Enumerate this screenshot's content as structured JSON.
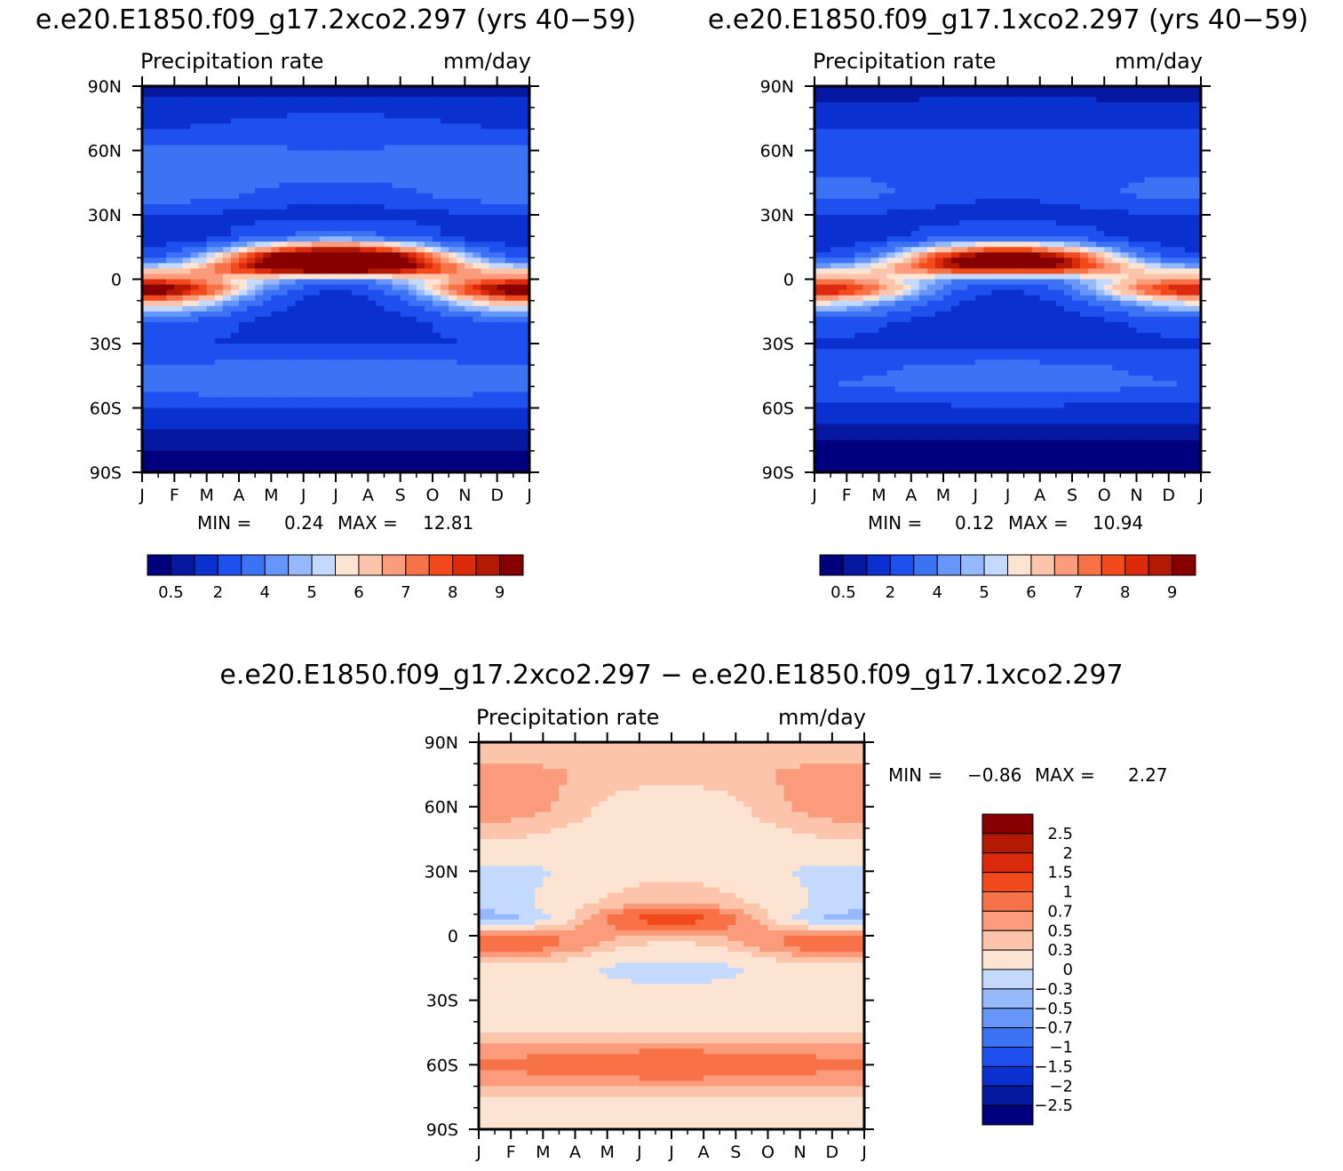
{
  "panels": [
    {
      "title": "e.e20.E1850.f09_g17.2xco2.297 (yrs 40−59)",
      "left_label": "Precipitation rate",
      "right_label": "mm/day",
      "min_label": "MIN =",
      "min_value": "0.24",
      "max_label": "MAX =",
      "max_value": "12.81"
    },
    {
      "title": "e.e20.E1850.f09_g17.1xco2.297 (yrs 40−59)",
      "left_label": "Precipitation rate",
      "right_label": "mm/day",
      "min_label": "MIN =",
      "min_value": "0.12",
      "max_label": "MAX =",
      "max_value": "10.94"
    },
    {
      "title": "e.e20.E1850.f09_g17.2xco2.297 − e.e20.E1850.f09_g17.1xco2.297",
      "left_label": "Precipitation rate",
      "right_label": "mm/day",
      "min_label": "MIN =",
      "min_value": "−0.86",
      "max_label": "MAX =",
      "max_value": "2.27"
    }
  ],
  "chart_data": [
    {
      "type": "heatmap",
      "title": "e.e20.E1850.f09_g17.2xco2.297 (yrs 40−59)",
      "variable": "Precipitation rate",
      "units": "mm/day",
      "x_ticks": [
        "J",
        "F",
        "M",
        "A",
        "M",
        "J",
        "J",
        "A",
        "S",
        "O",
        "N",
        "D",
        "J"
      ],
      "y_ticks": [
        "90N",
        "60N",
        "30N",
        "0",
        "30S",
        "60S",
        "90S"
      ],
      "ylim": [
        -90,
        90
      ],
      "min": 0.24,
      "max": 12.81,
      "colorbar_labels": [
        "0.5",
        "2",
        "4",
        "5",
        "6",
        "7",
        "8",
        "9"
      ],
      "colorbar_colors": [
        "#00007f",
        "#0618a0",
        "#0a30d0",
        "#1e50f0",
        "#3c73f5",
        "#6796fa",
        "#96b9fd",
        "#c4d9ff",
        "#fde4d2",
        "#fcc4ab",
        "#fa9c7c",
        "#f87247",
        "#f34a1d",
        "#dc2a0d",
        "#b31800",
        "#860000"
      ],
      "bands": [
        {
          "lat": 90,
          "jan": 0.5,
          "jul": 0.5
        },
        {
          "lat": 80,
          "jan": 1.5,
          "jul": 1.8
        },
        {
          "lat": 70,
          "jan": 2.0,
          "jul": 2.5
        },
        {
          "lat": 60,
          "jan": 3.5,
          "jul": 3.0
        },
        {
          "lat": 50,
          "jan": 3.0,
          "jul": 3.5
        },
        {
          "lat": 40,
          "jan": 3.8,
          "jul": 2.5
        },
        {
          "lat": 30,
          "jan": 2.0,
          "jul": 1.5
        },
        {
          "lat": 20,
          "jan": 1.0,
          "jul": 3.5
        },
        {
          "lat": 10,
          "jan": 3.0,
          "jul": 12.0
        },
        {
          "lat": 5,
          "jan": 5.5,
          "jul": 11.0
        },
        {
          "lat": 0,
          "jan": 7.5,
          "jul": 4.0
        },
        {
          "lat": -5,
          "jan": 10.0,
          "jul": 2.0
        },
        {
          "lat": -10,
          "jan": 7.0,
          "jul": 1.5
        },
        {
          "lat": -20,
          "jan": 3.0,
          "jul": 1.0
        },
        {
          "lat": -30,
          "jan": 2.0,
          "jul": 1.8
        },
        {
          "lat": -40,
          "jan": 3.0,
          "jul": 3.5
        },
        {
          "lat": -50,
          "jan": 3.5,
          "jul": 4.0
        },
        {
          "lat": -60,
          "jan": 2.0,
          "jul": 2.0
        },
        {
          "lat": -70,
          "jan": 1.0,
          "jul": 1.0
        },
        {
          "lat": -80,
          "jan": 0.5,
          "jul": 0.5
        },
        {
          "lat": -90,
          "jan": 0.3,
          "jul": 0.3
        }
      ]
    },
    {
      "type": "heatmap",
      "title": "e.e20.E1850.f09_g17.1xco2.297 (yrs 40−59)",
      "variable": "Precipitation rate",
      "units": "mm/day",
      "x_ticks": [
        "J",
        "F",
        "M",
        "A",
        "M",
        "J",
        "J",
        "A",
        "S",
        "O",
        "N",
        "D",
        "J"
      ],
      "y_ticks": [
        "90N",
        "60N",
        "30N",
        "0",
        "30S",
        "60S",
        "90S"
      ],
      "ylim": [
        -90,
        90
      ],
      "min": 0.12,
      "max": 10.94,
      "colorbar_labels": [
        "0.5",
        "2",
        "4",
        "5",
        "6",
        "7",
        "8",
        "9"
      ],
      "colorbar_colors": [
        "#00007f",
        "#0618a0",
        "#0a30d0",
        "#1e50f0",
        "#3c73f5",
        "#6796fa",
        "#96b9fd",
        "#c4d9ff",
        "#fde4d2",
        "#fcc4ab",
        "#fa9c7c",
        "#f87247",
        "#f34a1d",
        "#dc2a0d",
        "#b31800",
        "#860000"
      ],
      "bands": [
        {
          "lat": 90,
          "jan": 0.4,
          "jul": 0.4
        },
        {
          "lat": 80,
          "jan": 1.2,
          "jul": 1.5
        },
        {
          "lat": 70,
          "jan": 2.0,
          "jul": 2.0
        },
        {
          "lat": 60,
          "jan": 3.0,
          "jul": 2.5
        },
        {
          "lat": 50,
          "jan": 2.8,
          "jul": 3.0
        },
        {
          "lat": 40,
          "jan": 3.5,
          "jul": 2.2
        },
        {
          "lat": 30,
          "jan": 2.0,
          "jul": 1.5
        },
        {
          "lat": 20,
          "jan": 1.0,
          "jul": 3.0
        },
        {
          "lat": 10,
          "jan": 2.5,
          "jul": 10.5
        },
        {
          "lat": 5,
          "jan": 5.0,
          "jul": 9.5
        },
        {
          "lat": 0,
          "jan": 7.0,
          "jul": 3.5
        },
        {
          "lat": -5,
          "jan": 9.0,
          "jul": 2.0
        },
        {
          "lat": -10,
          "jan": 6.0,
          "jul": 1.5
        },
        {
          "lat": -20,
          "jan": 2.5,
          "jul": 1.0
        },
        {
          "lat": -30,
          "jan": 1.8,
          "jul": 1.8
        },
        {
          "lat": -40,
          "jan": 2.8,
          "jul": 3.2
        },
        {
          "lat": -50,
          "jan": 3.0,
          "jul": 3.5
        },
        {
          "lat": -60,
          "jan": 1.8,
          "jul": 1.8
        },
        {
          "lat": -70,
          "jan": 0.8,
          "jul": 0.8
        },
        {
          "lat": -80,
          "jan": 0.3,
          "jul": 0.3
        },
        {
          "lat": -90,
          "jan": 0.2,
          "jul": 0.2
        }
      ]
    },
    {
      "type": "heatmap",
      "title": "e.e20.E1850.f09_g17.2xco2.297 − e.e20.E1850.f09_g17.1xco2.297",
      "variable": "Precipitation rate",
      "units": "mm/day",
      "x_ticks": [
        "J",
        "F",
        "M",
        "A",
        "M",
        "J",
        "J",
        "A",
        "S",
        "O",
        "N",
        "D",
        "J"
      ],
      "y_ticks": [
        "90N",
        "60N",
        "30N",
        "0",
        "30S",
        "60S",
        "90S"
      ],
      "ylim": [
        -90,
        90
      ],
      "min": -0.86,
      "max": 2.27,
      "colorbar_labels": [
        "2.5",
        "2",
        "1.5",
        "1",
        "0.7",
        "0.5",
        "0.3",
        "0",
        "−0.3",
        "−0.5",
        "−0.7",
        "−1",
        "−1.5",
        "−2",
        "−2.5"
      ],
      "colorbar_colors": [
        "#860000",
        "#b31800",
        "#dc2a0d",
        "#f34a1d",
        "#f87247",
        "#fa9c7c",
        "#fcc4ab",
        "#fde4d2",
        "#c4d9ff",
        "#96b9fd",
        "#6796fa",
        "#3c73f5",
        "#1e50f0",
        "#0a30d0",
        "#0618a0",
        "#00007f"
      ],
      "bands": [
        {
          "lat": 90,
          "jan": 0.3,
          "jul": 0.5
        },
        {
          "lat": 75,
          "jan": 0.6,
          "jul": 0.4
        },
        {
          "lat": 60,
          "jan": 0.7,
          "jul": 0.1
        },
        {
          "lat": 45,
          "jan": 0.3,
          "jul": 0.1
        },
        {
          "lat": 30,
          "jan": -0.1,
          "jul": 0.2
        },
        {
          "lat": 15,
          "jan": -0.1,
          "jul": 0.5
        },
        {
          "lat": 8,
          "jan": -0.5,
          "jul": 1.2
        },
        {
          "lat": 0,
          "jan": 0.8,
          "jul": 0.5
        },
        {
          "lat": -5,
          "jan": 1.0,
          "jul": 0.2
        },
        {
          "lat": -15,
          "jan": 0.2,
          "jul": -0.1
        },
        {
          "lat": -30,
          "jan": 0.1,
          "jul": 0.1
        },
        {
          "lat": -45,
          "jan": 0.3,
          "jul": 0.3
        },
        {
          "lat": -60,
          "jan": 0.8,
          "jul": 1.0
        },
        {
          "lat": -75,
          "jan": 0.3,
          "jul": 0.3
        },
        {
          "lat": -90,
          "jan": 0.05,
          "jul": 0.05
        }
      ]
    }
  ]
}
